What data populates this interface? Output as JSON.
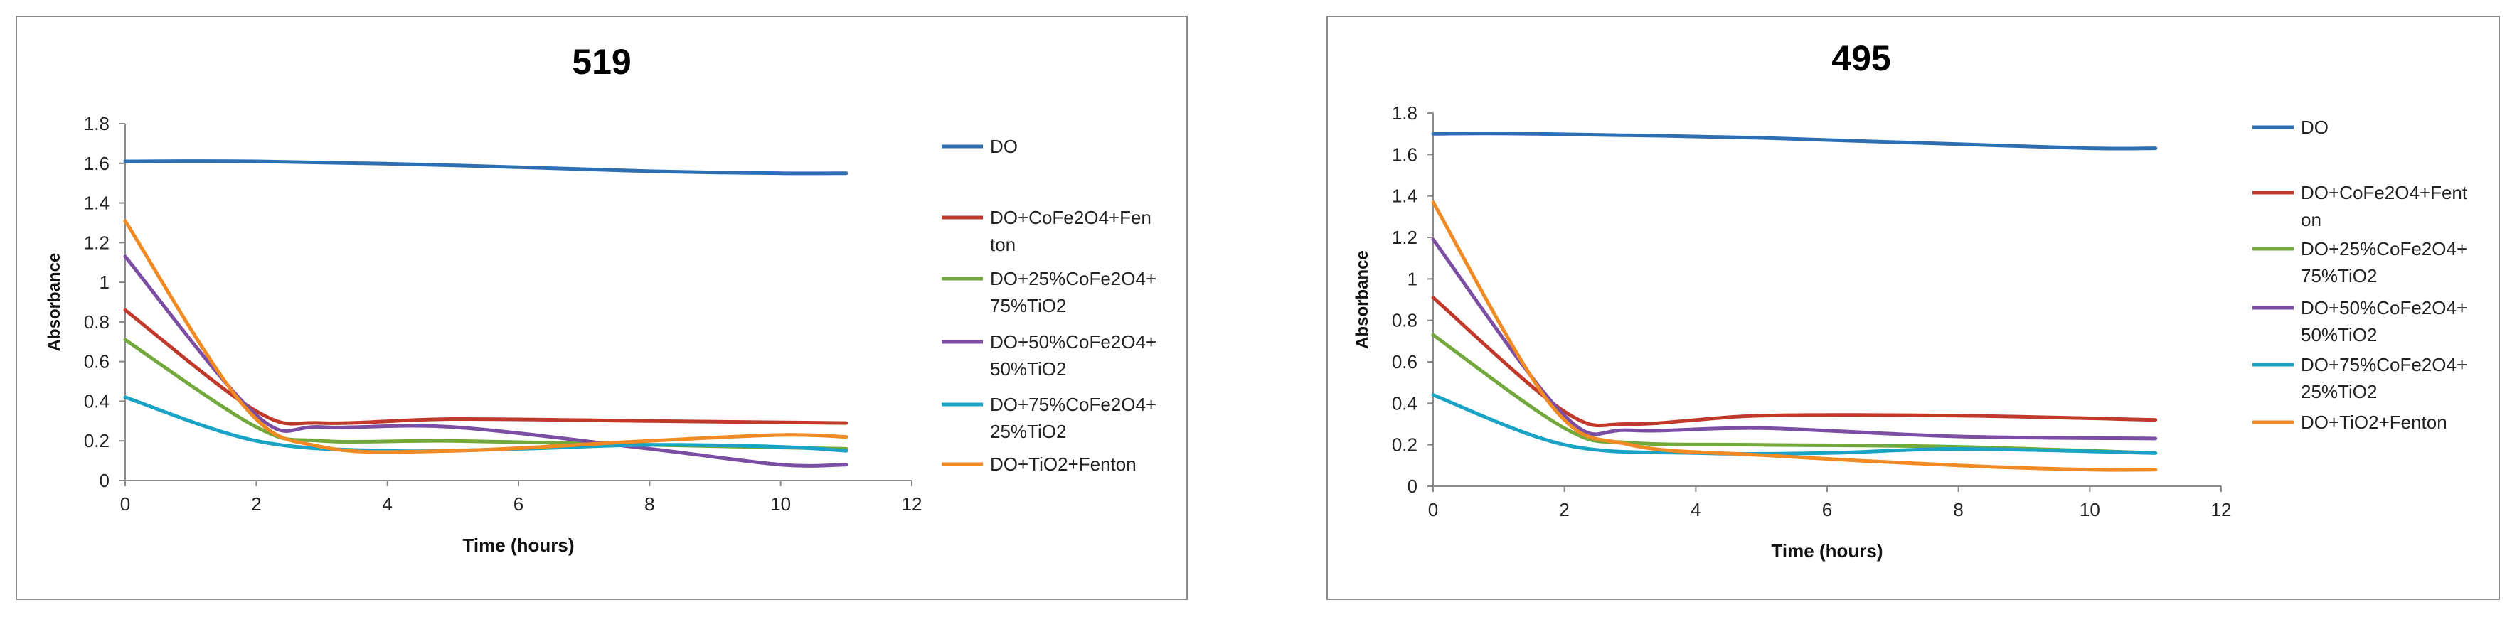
{
  "chart_data": [
    {
      "type": "line",
      "title": "519",
      "xlabel": "Time (hours)",
      "ylabel": "Absorbance",
      "xlim": [
        0,
        12
      ],
      "ylim": [
        0,
        1.8
      ],
      "xticks": [
        "0",
        "2",
        "4",
        "6",
        "8",
        "10",
        "12"
      ],
      "yticks": [
        "0",
        "0.2",
        "0.4",
        "0.6",
        "0.8",
        "1",
        "1.2",
        "1.4",
        "1.6",
        "1.8"
      ],
      "series": [
        {
          "name": "DO",
          "legend_lines": [
            "DO"
          ],
          "color": "#2e6fb4",
          "x": [
            0,
            2,
            5,
            8,
            10,
            11
          ],
          "y": [
            1.61,
            1.61,
            1.59,
            1.56,
            1.55,
            1.55
          ]
        },
        {
          "name": "DO+CoFe2O4+Fenton",
          "legend_lines": [
            "DO+CoFe2O4+Fen",
            "ton"
          ],
          "color": "#c0392b",
          "x": [
            0,
            2,
            3,
            5,
            8,
            11
          ],
          "y": [
            0.86,
            0.35,
            0.29,
            0.31,
            0.3,
            0.29
          ]
        },
        {
          "name": "DO+25%CoFe2O4+75%TiO2",
          "legend_lines": [
            "DO+25%CoFe2O4+",
            "75%TiO2"
          ],
          "color": "#72a83c",
          "x": [
            0,
            2,
            3,
            5,
            8,
            11
          ],
          "y": [
            0.71,
            0.27,
            0.2,
            0.2,
            0.18,
            0.16
          ]
        },
        {
          "name": "DO+50%CoFe2O4+50%TiO2",
          "legend_lines": [
            "DO+50%CoFe2O4+",
            "50%TiO2"
          ],
          "color": "#7b4ea3",
          "x": [
            0,
            2,
            3,
            5,
            8,
            10,
            11
          ],
          "y": [
            1.13,
            0.33,
            0.27,
            0.27,
            0.16,
            0.08,
            0.08
          ]
        },
        {
          "name": "DO+75%CoFe2O4+25%TiO2",
          "legend_lines": [
            "DO+75%CoFe2O4+",
            "25%TiO2"
          ],
          "color": "#1aa3c4",
          "x": [
            0,
            2,
            4,
            6,
            8,
            10,
            11
          ],
          "y": [
            0.42,
            0.2,
            0.15,
            0.16,
            0.18,
            0.17,
            0.15
          ]
        },
        {
          "name": "DO+TiO2+Fenton",
          "legend_lines": [
            "DO+TiO2+Fenton"
          ],
          "color": "#f08a24",
          "x": [
            0,
            1.8,
            3,
            5,
            8,
            10,
            11
          ],
          "y": [
            1.31,
            0.38,
            0.17,
            0.15,
            0.2,
            0.23,
            0.22
          ]
        }
      ]
    },
    {
      "type": "line",
      "title": "495",
      "xlabel": "Time (hours)",
      "ylabel": "Absorbance",
      "xlim": [
        0,
        12
      ],
      "ylim": [
        0,
        1.8
      ],
      "xticks": [
        "0",
        "2",
        "4",
        "6",
        "8",
        "10",
        "12"
      ],
      "yticks": [
        "0",
        "0.2",
        "0.4",
        "0.6",
        "0.8",
        "1",
        "1.2",
        "1.4",
        "1.6",
        "1.8"
      ],
      "series": [
        {
          "name": "DO",
          "legend_lines": [
            "DO"
          ],
          "color": "#2e6fb4",
          "x": [
            0,
            1.5,
            5,
            8,
            10,
            11
          ],
          "y": [
            1.7,
            1.7,
            1.68,
            1.65,
            1.63,
            1.63
          ]
        },
        {
          "name": "DO+CoFe2O4+Fenton",
          "legend_lines": [
            "DO+CoFe2O4+Fent",
            "on"
          ],
          "color": "#c0392b",
          "x": [
            0,
            2,
            3,
            5,
            8,
            11
          ],
          "y": [
            0.91,
            0.36,
            0.3,
            0.34,
            0.34,
            0.32
          ]
        },
        {
          "name": "DO+25%CoFe2O4+75%TiO2",
          "legend_lines": [
            "DO+25%CoFe2O4+",
            "75%TiO2"
          ],
          "color": "#72a83c",
          "x": [
            0,
            2,
            3,
            5,
            8,
            11
          ],
          "y": [
            0.73,
            0.28,
            0.21,
            0.2,
            0.19,
            0.16
          ]
        },
        {
          "name": "DO+50%CoFe2O4+50%TiO2",
          "legend_lines": [
            "DO+50%CoFe2O4+",
            "50%TiO2"
          ],
          "color": "#7b4ea3",
          "x": [
            0,
            2,
            3,
            5,
            8,
            11
          ],
          "y": [
            1.19,
            0.34,
            0.27,
            0.28,
            0.24,
            0.23
          ]
        },
        {
          "name": "DO+75%CoFe2O4+25%TiO2",
          "legend_lines": [
            "DO+75%CoFe2O4+",
            "25%TiO2"
          ],
          "color": "#1aa3c4",
          "x": [
            0,
            2,
            4,
            6,
            8,
            11
          ],
          "y": [
            0.44,
            0.2,
            0.16,
            0.16,
            0.18,
            0.16
          ]
        },
        {
          "name": "DO+TiO2+Fenton",
          "legend_lines": [
            "DO+TiO2+Fenton"
          ],
          "color": "#f08a24",
          "x": [
            0,
            1.8,
            3,
            5,
            8,
            10,
            11
          ],
          "y": [
            1.37,
            0.39,
            0.2,
            0.15,
            0.1,
            0.08,
            0.08
          ]
        }
      ]
    }
  ]
}
